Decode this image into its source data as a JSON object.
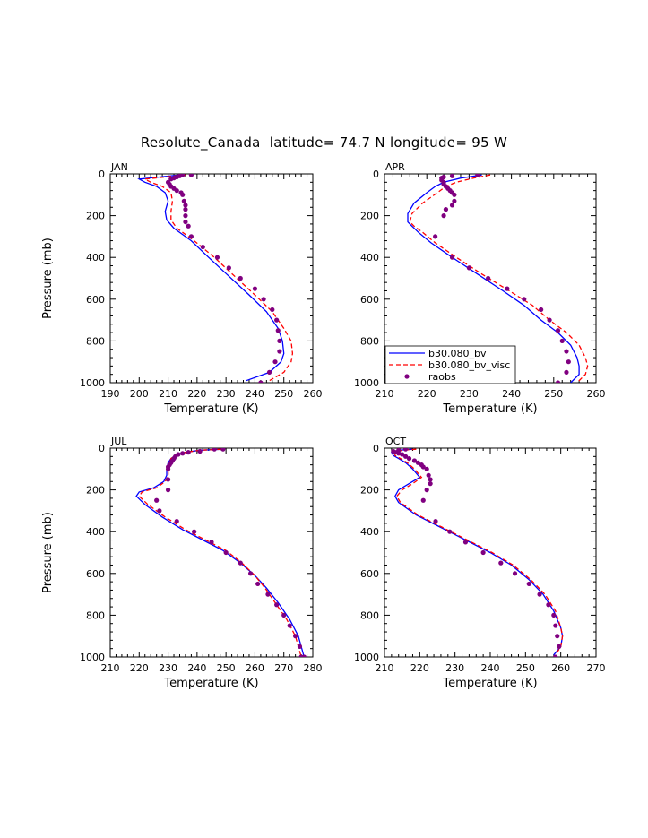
{
  "figure": {
    "title": "Resolute_Canada  latitude= 74.7 N longitude= 95 W"
  },
  "legend": {
    "location": "bottom-left of APR panel",
    "entries": [
      {
        "label": "b30.080_bv",
        "color": "#0000ff",
        "style": "solid"
      },
      {
        "label": "b30.080_bv_visc",
        "color": "#ff0000",
        "style": "dashed"
      },
      {
        "label": "raobs",
        "color": "#800080",
        "style": "dots"
      }
    ]
  },
  "chart_data": [
    {
      "type": "line",
      "panel": "JAN",
      "xlabel": "Temperature (K)",
      "ylabel": "Pressure (mb)",
      "xlim": [
        190,
        260
      ],
      "xticks": [
        "190",
        "200",
        "210",
        "220",
        "230",
        "240",
        "250",
        "260"
      ],
      "ylim": [
        1000,
        0
      ],
      "yticks": [
        "0",
        "200",
        "400",
        "600",
        "800",
        "1000"
      ],
      "series": [
        {
          "name": "b30.080_bv",
          "color": "#0000ff",
          "x": [
            214,
            207,
            200,
            202,
            206,
            209,
            210,
            209,
            209.5,
            212,
            218,
            224,
            231,
            238,
            244,
            248,
            249.5,
            250,
            249,
            245,
            237
          ],
          "y": [
            5,
            15,
            25,
            40,
            60,
            90,
            130,
            180,
            220,
            260,
            320,
            400,
            490,
            580,
            660,
            740,
            800,
            860,
            900,
            950,
            990
          ]
        },
        {
          "name": "b30.080_bv_visc",
          "color": "#ff0000",
          "x": [
            216,
            209,
            202,
            204,
            208,
            211,
            211.5,
            211,
            211,
            213,
            219,
            226,
            233,
            240,
            246,
            250,
            252.5,
            253,
            252.5,
            250,
            245
          ],
          "y": [
            5,
            15,
            25,
            40,
            60,
            90,
            130,
            180,
            220,
            260,
            320,
            400,
            490,
            580,
            660,
            740,
            800,
            860,
            900,
            950,
            990
          ]
        },
        {
          "name": "raobs",
          "color": "#800080",
          "x": [
            218,
            215,
            214,
            213,
            212,
            211,
            210,
            210.5,
            211,
            212,
            213,
            214.5,
            215,
            215.5,
            216,
            216,
            216,
            216,
            217,
            218,
            222,
            227,
            231,
            235,
            240,
            243,
            246,
            247.5,
            248,
            248.5,
            248.5,
            247,
            245,
            242
          ],
          "y": [
            5,
            5,
            10,
            15,
            20,
            25,
            40,
            50,
            60,
            70,
            80,
            90,
            100,
            130,
            150,
            170,
            200,
            230,
            250,
            300,
            350,
            400,
            450,
            500,
            550,
            600,
            650,
            700,
            750,
            800,
            850,
            900,
            950,
            1000
          ]
        }
      ]
    },
    {
      "type": "line",
      "panel": "APR",
      "xlabel": "Temperature (K)",
      "ylabel": "",
      "xlim": [
        210,
        260
      ],
      "xticks": [
        "210",
        "220",
        "230",
        "240",
        "250",
        "260"
      ],
      "ylim": [
        1000,
        0
      ],
      "yticks": [
        "0",
        "200",
        "400",
        "600",
        "800",
        "1000"
      ],
      "series": [
        {
          "name": "b30.080_bv",
          "color": "#0000ff",
          "x": [
            233,
            228,
            224,
            222,
            220,
            217,
            215.5,
            215.5,
            216.5,
            218,
            221,
            226,
            232,
            238,
            243,
            247,
            251,
            254,
            255.5,
            256,
            256,
            254
          ],
          "y": [
            5,
            20,
            40,
            60,
            90,
            140,
            190,
            230,
            250,
            280,
            330,
            400,
            480,
            560,
            630,
            700,
            760,
            820,
            880,
            920,
            960,
            1000
          ]
        },
        {
          "name": "b30.080_bv_visc",
          "color": "#ff0000",
          "x": [
            235,
            231,
            227,
            224.5,
            222.5,
            219,
            216.5,
            216,
            217,
            219,
            222,
            227,
            233,
            239.5,
            245,
            249,
            253,
            256,
            257.5,
            258,
            257.5,
            255.5
          ],
          "y": [
            5,
            20,
            40,
            60,
            90,
            140,
            190,
            230,
            250,
            280,
            330,
            400,
            480,
            560,
            630,
            700,
            760,
            820,
            880,
            920,
            960,
            1000
          ]
        },
        {
          "name": "raobs",
          "color": "#800080",
          "x": [
            232,
            226,
            224,
            223.5,
            223.5,
            224,
            224,
            224.5,
            225,
            225.5,
            226,
            226.5,
            226.5,
            226,
            224.5,
            224,
            222,
            226,
            230,
            234.5,
            239,
            243,
            247,
            249,
            251,
            252,
            253,
            253.5,
            253,
            251
          ],
          "y": [
            5,
            10,
            15,
            20,
            30,
            40,
            50,
            60,
            70,
            80,
            90,
            100,
            130,
            150,
            170,
            200,
            300,
            400,
            450,
            500,
            550,
            600,
            650,
            700,
            750,
            800,
            850,
            900,
            950,
            1000
          ]
        }
      ]
    },
    {
      "type": "line",
      "panel": "JUL",
      "xlabel": "Temperature (K)",
      "ylabel": "Pressure (mb)",
      "xlim": [
        210,
        280
      ],
      "xticks": [
        "210",
        "220",
        "230",
        "240",
        "250",
        "260",
        "270",
        "280"
      ],
      "ylim": [
        1000,
        0
      ],
      "yticks": [
        "0",
        "200",
        "400",
        "600",
        "800",
        "1000"
      ],
      "series": [
        {
          "name": "b30.080_bv",
          "color": "#0000ff",
          "x": [
            249,
            241,
            236,
            233,
            231,
            230,
            229.5,
            229.5,
            228.5,
            225,
            220,
            219,
            222,
            228,
            235,
            242,
            249,
            255,
            260,
            264,
            268,
            272,
            275,
            277
          ],
          "y": [
            5,
            10,
            20,
            30,
            50,
            70,
            100,
            130,
            160,
            190,
            210,
            230,
            270,
            330,
            390,
            440,
            490,
            550,
            610,
            670,
            740,
            820,
            900,
            1000
          ]
        },
        {
          "name": "b30.080_bv_visc",
          "color": "#ff0000",
          "x": [
            248.5,
            241,
            236,
            233,
            231,
            230.5,
            230,
            230,
            229,
            226,
            221,
            220,
            223,
            229,
            236,
            243,
            250,
            255.5,
            260,
            263.5,
            267,
            271,
            274,
            276
          ],
          "y": [
            5,
            10,
            20,
            30,
            50,
            70,
            100,
            130,
            160,
            190,
            210,
            230,
            270,
            330,
            390,
            440,
            490,
            550,
            610,
            670,
            740,
            820,
            900,
            1000
          ]
        },
        {
          "name": "raobs",
          "color": "#800080",
          "x": [
            249,
            246,
            241,
            237,
            235,
            233.5,
            232.5,
            232,
            231.5,
            231,
            230.5,
            230,
            230,
            230,
            230,
            226,
            227,
            233,
            239,
            245,
            250,
            255,
            258.5,
            261,
            264.5,
            267.5,
            270,
            272,
            274,
            275.5,
            276,
            277
          ],
          "y": [
            5,
            5,
            15,
            20,
            25,
            30,
            40,
            50,
            60,
            70,
            80,
            90,
            100,
            150,
            200,
            250,
            300,
            350,
            400,
            450,
            500,
            550,
            600,
            650,
            700,
            750,
            800,
            850,
            900,
            950,
            1000,
            1000
          ]
        }
      ]
    },
    {
      "type": "line",
      "panel": "OCT",
      "xlabel": "Temperature (K)",
      "ylabel": "",
      "xlim": [
        210,
        270
      ],
      "xticks": [
        "210",
        "220",
        "230",
        "240",
        "250",
        "260",
        "270"
      ],
      "ylim": [
        1000,
        0
      ],
      "yticks": [
        "0",
        "200",
        "400",
        "600",
        "800",
        "1000"
      ],
      "series": [
        {
          "name": "b30.080_bv",
          "color": "#0000ff",
          "x": [
            218,
            214,
            212,
            212.5,
            214,
            216,
            218,
            220,
            217,
            214,
            213,
            214,
            219,
            226,
            233,
            240,
            246,
            251,
            255,
            258,
            260,
            260.5,
            260,
            258
          ],
          "y": [
            5,
            10,
            20,
            35,
            50,
            70,
            100,
            140,
            170,
            200,
            230,
            260,
            320,
            380,
            440,
            500,
            560,
            630,
            700,
            780,
            860,
            900,
            950,
            990
          ]
        },
        {
          "name": "b30.080_bv_visc",
          "color": "#ff0000",
          "x": [
            219,
            215,
            213,
            213,
            214.5,
            216.5,
            218.5,
            220.5,
            218,
            215,
            213.5,
            214.5,
            219.5,
            226.5,
            233.5,
            240.5,
            246.5,
            251.5,
            255.5,
            258.5,
            260,
            260.5,
            260,
            258.5
          ],
          "y": [
            5,
            10,
            20,
            35,
            50,
            70,
            100,
            140,
            170,
            200,
            230,
            260,
            320,
            380,
            440,
            500,
            560,
            630,
            700,
            780,
            860,
            900,
            950,
            990
          ]
        },
        {
          "name": "raobs",
          "color": "#800080",
          "x": [
            216,
            214,
            212.5,
            213,
            214,
            215,
            216,
            217,
            218.5,
            219.5,
            220.5,
            221,
            222,
            222.5,
            223,
            223,
            222,
            221,
            224.5,
            228.5,
            233,
            238,
            243,
            247,
            251,
            254,
            256.5,
            258,
            258.5,
            259,
            259.5,
            258.5
          ],
          "y": [
            5,
            10,
            15,
            20,
            25,
            30,
            40,
            50,
            60,
            70,
            80,
            90,
            100,
            130,
            150,
            170,
            200,
            250,
            350,
            400,
            450,
            500,
            550,
            600,
            650,
            700,
            750,
            800,
            850,
            900,
            950,
            1000
          ]
        }
      ]
    }
  ]
}
